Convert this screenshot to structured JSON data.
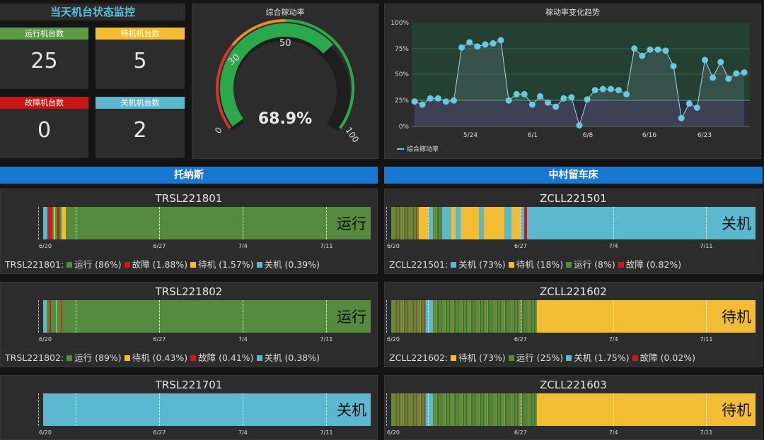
{
  "colors": {
    "run": "#548b3e",
    "fault": "#d0181c",
    "idle": "#f2bd33",
    "off": "#5cb8cf",
    "gauge_green": "#2aa84a",
    "gauge_orange": "#e88b2b",
    "gauge_red": "#d9342a",
    "accent_blue": "#1877d0"
  },
  "header": {
    "title": "当天机台状态监控"
  },
  "stats": [
    {
      "label": "运行机台数",
      "value": "25",
      "color": "#5c9a45"
    },
    {
      "label": "待机机台数",
      "value": "5",
      "color": "#f2bd33"
    },
    {
      "label": "故障机台数",
      "value": "0",
      "color": "#c91616"
    },
    {
      "label": "关机机台数",
      "value": "2",
      "color": "#5cb8cf"
    }
  ],
  "gauge": {
    "title": "综合稼动率",
    "value": 68.9,
    "value_text": "68.9%",
    "min_label": "0",
    "max_label": "100",
    "tick_30": "30",
    "tick_50": "50"
  },
  "trend": {
    "title": "稼动率变化趋势",
    "y_ticks": [
      "100%",
      "75%",
      "50%",
      "25%",
      "0%"
    ],
    "x_ticks": [
      "5/24",
      "6/1",
      "6/8",
      "6/16",
      "6/23"
    ],
    "legend": "综合稼动率",
    "chart_data": {
      "type": "line",
      "ylim": [
        0,
        100
      ],
      "values": [
        24,
        21,
        27,
        27,
        24,
        25,
        76,
        81,
        77,
        79,
        80,
        83,
        25,
        31,
        31,
        21,
        29,
        23,
        19,
        27,
        28,
        1,
        26,
        35,
        36,
        36,
        35,
        31,
        75,
        68,
        74,
        74,
        73,
        58,
        8,
        22,
        18,
        64,
        47,
        62,
        46,
        51,
        52
      ]
    }
  },
  "groups": [
    {
      "title": "托纳斯"
    },
    {
      "title": "中村留车床"
    }
  ],
  "timeline_ticks": [
    "6/20",
    "6/27",
    "7/4",
    "7/11"
  ],
  "machines_left": [
    {
      "name": "TRSL221801",
      "state": "运行",
      "legend_prefix": "TRSL221801:",
      "legend": [
        {
          "label": "运行 (86%)",
          "c": "run"
        },
        {
          "label": "故障 (1.88%)",
          "c": "fault"
        },
        {
          "label": "待机 (1.57%)",
          "c": "idle"
        },
        {
          "label": "关机 (0.39%)",
          "c": "off"
        }
      ],
      "segs": [
        [
          0,
          1.2,
          "off"
        ],
        [
          1.2,
          1.5,
          "fault"
        ],
        [
          2.7,
          0.6,
          "run"
        ],
        [
          3.3,
          0.4,
          "idle"
        ],
        [
          3.7,
          0.6,
          "run"
        ],
        [
          4.3,
          0.6,
          "fault"
        ],
        [
          4.9,
          0.8,
          "run"
        ],
        [
          5.7,
          1.2,
          "idle"
        ],
        [
          6.9,
          93.1,
          "run"
        ]
      ]
    },
    {
      "name": "TRSL221802",
      "state": "运行",
      "legend_prefix": "TRSL221802:",
      "legend": [
        {
          "label": "运行 (89%)",
          "c": "run"
        },
        {
          "label": "待机 (0.43%)",
          "c": "idle"
        },
        {
          "label": "故障 (0.41%)",
          "c": "fault"
        },
        {
          "label": "关机 (0.38%)",
          "c": "off"
        }
      ],
      "segs": [
        [
          0,
          1.0,
          "off"
        ],
        [
          1.0,
          1.0,
          "run"
        ],
        [
          2.0,
          0.4,
          "fault"
        ],
        [
          2.4,
          1.4,
          "run"
        ],
        [
          3.8,
          0.4,
          "idle"
        ],
        [
          4.2,
          1.2,
          "run"
        ],
        [
          5.4,
          0.3,
          "fault"
        ],
        [
          5.7,
          94.3,
          "run"
        ]
      ]
    },
    {
      "name": "TRSL221701",
      "state": "关机",
      "legend_prefix": "",
      "legend": [],
      "segs": [
        [
          0,
          100,
          "off"
        ]
      ]
    }
  ],
  "machines_right": [
    {
      "name": "ZCLL221501",
      "state": "关机",
      "legend_prefix": "ZCLL221501:",
      "legend": [
        {
          "label": "关机 (73%)",
          "c": "off"
        },
        {
          "label": "待机 (18%)",
          "c": "idle"
        },
        {
          "label": "运行 (8%)",
          "c": "run"
        },
        {
          "label": "故障 (0.82%)",
          "c": "fault"
        }
      ],
      "segs": [
        [
          0,
          7.5,
          "runmix"
        ],
        [
          7.5,
          2.5,
          "idle"
        ],
        [
          10,
          1.5,
          "off"
        ],
        [
          11.5,
          2.5,
          "runmix"
        ],
        [
          14,
          2.5,
          "off"
        ],
        [
          16.5,
          1.2,
          "idle"
        ],
        [
          17.7,
          1.3,
          "off"
        ],
        [
          19,
          5,
          "idle"
        ],
        [
          24,
          1.5,
          "off"
        ],
        [
          25.5,
          5.5,
          "idle"
        ],
        [
          31,
          2,
          "off"
        ],
        [
          33,
          2.5,
          "idle"
        ],
        [
          35.5,
          1.0,
          "off"
        ],
        [
          36.5,
          0.8,
          "fault"
        ],
        [
          37.3,
          62.7,
          "off"
        ]
      ]
    },
    {
      "name": "ZCLL221602",
      "state": "待机",
      "legend_prefix": "ZCLL221602:",
      "legend": [
        {
          "label": "待机 (73%)",
          "c": "idle"
        },
        {
          "label": "运行 (25%)",
          "c": "run"
        },
        {
          "label": "关机 (1.75%)",
          "c": "off"
        },
        {
          "label": "故障 (0.02%)",
          "c": "fault"
        }
      ],
      "segs": [
        [
          0,
          9.5,
          "runmix"
        ],
        [
          9.5,
          2,
          "off"
        ],
        [
          11.5,
          28.5,
          "runmix"
        ],
        [
          40,
          60,
          "idle"
        ]
      ]
    },
    {
      "name": "ZCLL221603",
      "state": "待机",
      "legend_prefix": "",
      "legend": [],
      "segs": [
        [
          0,
          9.5,
          "runmix"
        ],
        [
          9.5,
          2,
          "off"
        ],
        [
          11.5,
          28.5,
          "runmix"
        ],
        [
          40,
          60,
          "idle"
        ]
      ]
    }
  ]
}
